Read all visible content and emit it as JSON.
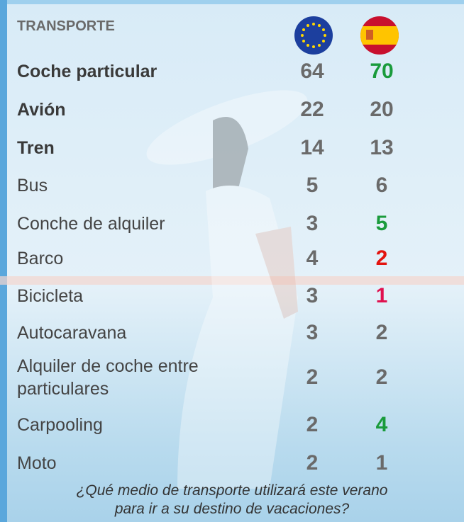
{
  "header": {
    "title": "TRANSPORTE"
  },
  "table": {
    "rows": [
      {
        "label": "Coche particular",
        "bold": true,
        "eu": 64,
        "es": 70,
        "es_color": "#1a9b3c"
      },
      {
        "label": "Avión",
        "bold": true,
        "eu": 22,
        "es": 20,
        "es_color": "#6a6a6a"
      },
      {
        "label": "Tren",
        "bold": true,
        "eu": 14,
        "es": 13,
        "es_color": "#6a6a6a"
      },
      {
        "label": "Bus",
        "bold": false,
        "eu": 5,
        "es": 6,
        "es_color": "#6a6a6a"
      },
      {
        "label": "Conche de alquiler",
        "bold": false,
        "eu": 3,
        "es": 5,
        "es_color": "#1a9b3c"
      },
      {
        "label": "Barco",
        "bold": false,
        "eu": 4,
        "es": 2,
        "es_color": "#e3140f"
      },
      {
        "label": "Bicicleta",
        "bold": false,
        "eu": 3,
        "es": 1,
        "es_color": "#e0114f"
      },
      {
        "label": "Autocaravana",
        "bold": false,
        "eu": 3,
        "es": 2,
        "es_color": "#6a6a6a"
      },
      {
        "label": "Alquiler de coche entre particulares",
        "bold": false,
        "eu": 2,
        "es": 2,
        "es_color": "#6a6a6a"
      },
      {
        "label": "Carpooling",
        "bold": false,
        "eu": 2,
        "es": 4,
        "es_color": "#1a9b3c"
      },
      {
        "label": "Moto",
        "bold": false,
        "eu": 2,
        "es": 1,
        "es_color": "#6a6a6a"
      }
    ]
  },
  "footer": {
    "question": "¿Qué medio de transporte utilizará este verano para ir a su destino de vacaciones?"
  }
}
